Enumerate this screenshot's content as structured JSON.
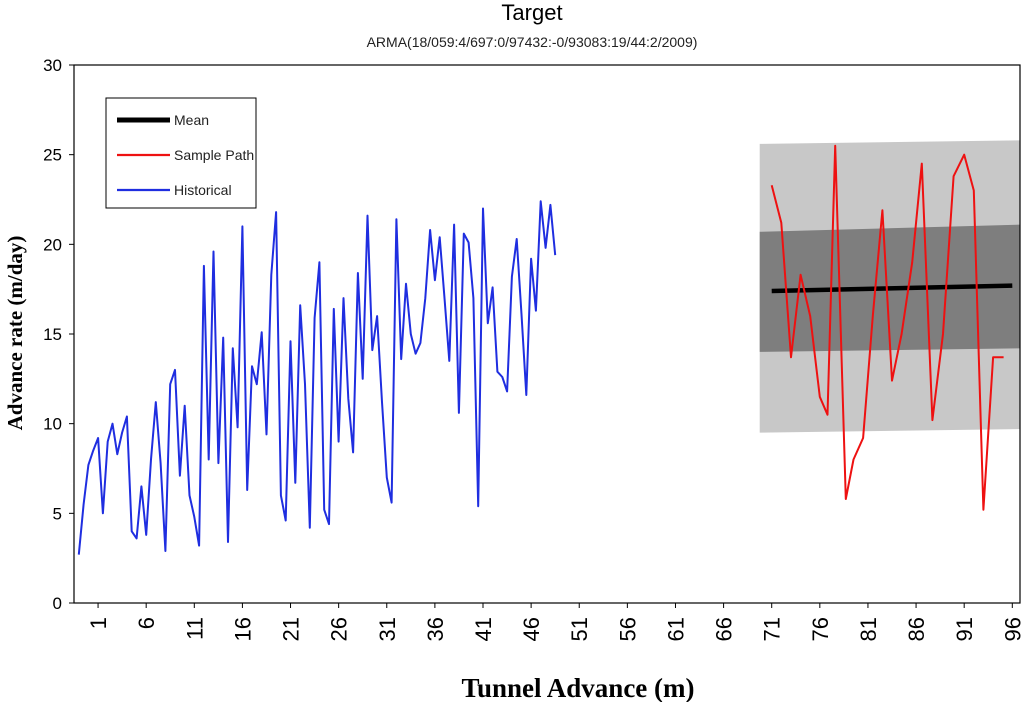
{
  "chart_data": {
    "type": "line",
    "title": "Target",
    "subtitle": "ARMA(18/059:4/697:0/97432:-0/93083:19/44:2/2009)",
    "xlabel": "Tunnel Advance (m)",
    "ylabel": "Advance rate (m/day)",
    "ylim": [
      0,
      30
    ],
    "yticks": [
      0,
      5,
      10,
      15,
      20,
      25,
      30
    ],
    "xticks": [
      "1",
      "6",
      "11",
      "16",
      "21",
      "26",
      "31",
      "36",
      "41",
      "46",
      "51",
      "56",
      "61",
      "66",
      "71",
      "76",
      "81",
      "86",
      "91",
      "96"
    ],
    "legend_position": "top-left",
    "legend": [
      {
        "label": "Mean",
        "color": "#000000"
      },
      {
        "label": "Sample Path",
        "color": "#ee1111"
      },
      {
        "label": "Historical",
        "color": "#1f2ee0"
      }
    ],
    "bands": [
      {
        "name": "outer-band",
        "color": "#c8c8c8",
        "x": [
          71,
          96
        ],
        "lower": [
          9.5,
          9.7
        ],
        "upper": [
          25.6,
          25.8
        ]
      },
      {
        "name": "inner-band",
        "color": "#7e7e7e",
        "x": [
          71,
          96
        ],
        "lower": [
          14.0,
          14.2
        ],
        "upper": [
          20.7,
          21.1
        ]
      }
    ],
    "series": [
      {
        "name": "Mean",
        "color": "#000000",
        "x": [
          71,
          96
        ],
        "values": [
          17.4,
          17.7
        ]
      },
      {
        "name": "Historical",
        "color": "#1f2ee0",
        "x_start": -1,
        "x_step": 0.5,
        "values": [
          2.7,
          5.5,
          7.7,
          8.5,
          9.2,
          5.0,
          9.0,
          10.0,
          8.3,
          9.5,
          10.4,
          4.0,
          3.6,
          6.5,
          3.8,
          8.0,
          11.2,
          7.8,
          2.9,
          12.2,
          13.0,
          7.1,
          11.0,
          6.0,
          4.8,
          3.2,
          18.8,
          8.0,
          19.6,
          7.8,
          14.8,
          3.4,
          14.2,
          9.8,
          21.0,
          6.3,
          13.2,
          12.2,
          15.1,
          9.4,
          18.3,
          21.8,
          6.0,
          4.6,
          14.6,
          6.7,
          16.6,
          12.2,
          4.2,
          15.9,
          19.0,
          5.2,
          4.4,
          16.4,
          9.0,
          17.0,
          11.4,
          8.4,
          18.4,
          12.5,
          21.6,
          14.1,
          16.0,
          11.2,
          7.0,
          5.6,
          21.4,
          13.6,
          17.8,
          15.0,
          13.9,
          14.5,
          17.0,
          20.8,
          18.0,
          20.4,
          17.0,
          13.5,
          21.1,
          10.6,
          20.6,
          20.1,
          17.0,
          5.4,
          22.0,
          15.6,
          17.6,
          12.9,
          12.6,
          11.8,
          18.2,
          20.3,
          16.1,
          11.6,
          19.2,
          16.3,
          22.4,
          19.8,
          22.2,
          19.4
        ]
      },
      {
        "name": "Sample Path",
        "color": "#ee1111",
        "x": [
          71.0,
          72.0,
          73.0,
          74.0,
          75.0,
          76.0,
          76.8,
          77.6,
          78.7,
          79.5,
          80.5,
          81.5,
          82.5,
          83.5,
          84.5,
          85.6,
          86.6,
          87.7,
          88.8,
          89.9,
          91.0,
          92.0,
          93.0,
          94.0,
          95.1
        ],
        "values": [
          23.3,
          21.2,
          13.7,
          18.3,
          16.0,
          11.5,
          10.5,
          25.5,
          5.8,
          8.0,
          9.2,
          16.0,
          21.9,
          12.4,
          15.0,
          19.0,
          24.5,
          10.2,
          15.0,
          23.8,
          25.0,
          23.0,
          5.2,
          13.7,
          13.7
        ]
      }
    ]
  }
}
